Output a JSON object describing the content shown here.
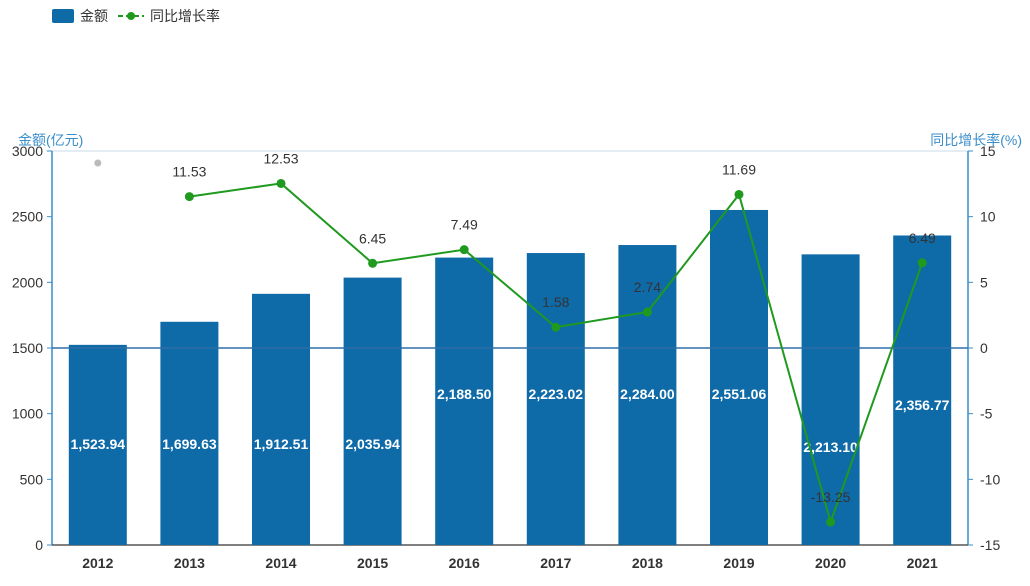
{
  "legend": {
    "bar_label": "金额",
    "line_label": "同比增长率"
  },
  "axes": {
    "left_title": "金额(亿元)",
    "right_title": "同比增长率(%)"
  },
  "colors": {
    "bar": "#0f6aa8",
    "line": "#1f9a1f",
    "axis": "#3a8ec9",
    "grid": "#2f6ea8",
    "text": "#333333",
    "bar_label": "#ffffff",
    "dot": "#bbbbbb"
  },
  "chart_data": {
    "type": "bar",
    "categories": [
      "2012",
      "2013",
      "2014",
      "2015",
      "2016",
      "2017",
      "2018",
      "2019",
      "2020",
      "2021"
    ],
    "series": [
      {
        "name": "金额",
        "type": "bar",
        "axis": "left",
        "values": [
          1523.94,
          1699.63,
          1912.51,
          2035.94,
          2188.5,
          2223.02,
          2284.0,
          2551.06,
          2213.1,
          2356.77
        ],
        "labels": [
          "1,523.94",
          "1,699.63",
          "1,912.51",
          "2,035.94",
          "2,188.50",
          "2,223.02",
          "2,284.00",
          "2,551.06",
          "2,213.10",
          "2,356.77"
        ]
      },
      {
        "name": "同比增长率",
        "type": "line",
        "axis": "right",
        "values": [
          null,
          11.53,
          12.53,
          6.45,
          7.49,
          1.58,
          2.74,
          11.69,
          -13.25,
          6.49
        ],
        "labels": [
          "",
          "11.53",
          "12.53",
          "6.45",
          "7.49",
          "1.58",
          "2.74",
          "11.69",
          "-13.25",
          "6.49"
        ]
      }
    ],
    "left_axis": {
      "ylim": [
        0,
        3000
      ],
      "ticks": [
        "0",
        "500",
        "1000",
        "1500",
        "2000",
        "2500",
        "3000"
      ]
    },
    "right_axis": {
      "ylim": [
        -15,
        15
      ],
      "ticks": [
        "-15",
        "-10",
        "-5",
        "0",
        "5",
        "10",
        "15"
      ]
    },
    "legend_position": "top-left",
    "grid": false
  }
}
